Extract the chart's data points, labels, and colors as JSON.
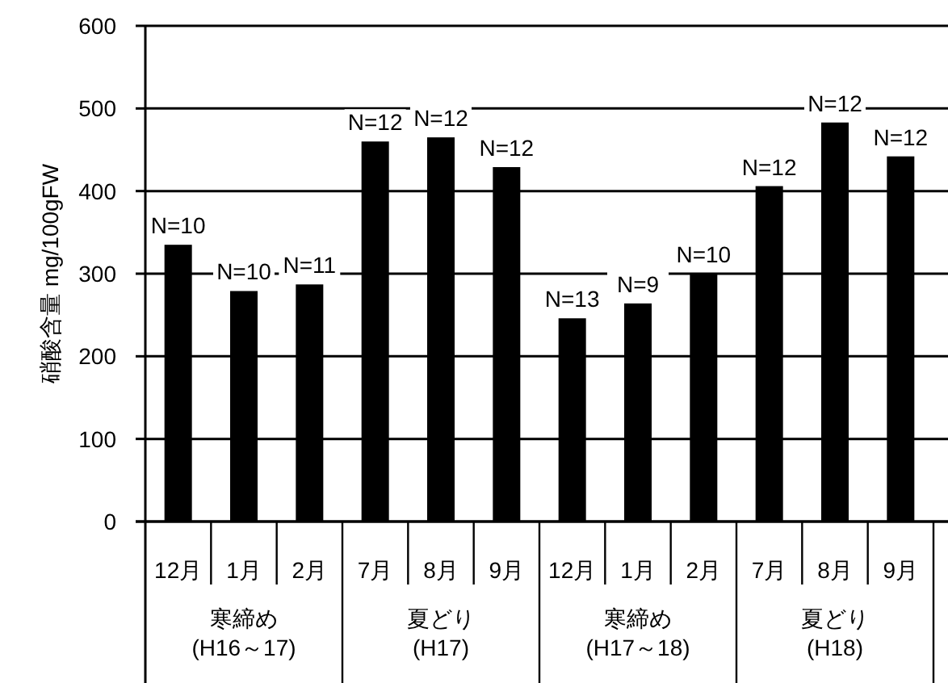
{
  "chart_data": {
    "type": "bar",
    "ylabel": "硝酸含量 mg/100gFW",
    "categories": [
      "12月",
      "1月",
      "2月",
      "7月",
      "8月",
      "9月",
      "12月",
      "1月",
      "2月",
      "7月",
      "8月",
      "9月"
    ],
    "values": [
      335,
      279,
      287,
      460,
      465,
      429,
      246,
      264,
      300,
      406,
      483,
      442
    ],
    "color": "#000000",
    "ylim": [
      0,
      600
    ],
    "yticks": [
      0,
      100,
      200,
      300,
      400,
      500,
      600
    ],
    "grid": "y",
    "annotations": [
      "N=10",
      "N=10",
      "N=11",
      "N=12",
      "N=12",
      "N=12",
      "N=13",
      "N=9",
      "N=10",
      "N=12",
      "N=12",
      "N=12",
      "寒締め\n(H16～17)",
      "夏どり\n(H17)",
      "寒締め\n(H17～18)",
      "夏どり\n(H18)"
    ]
  }
}
